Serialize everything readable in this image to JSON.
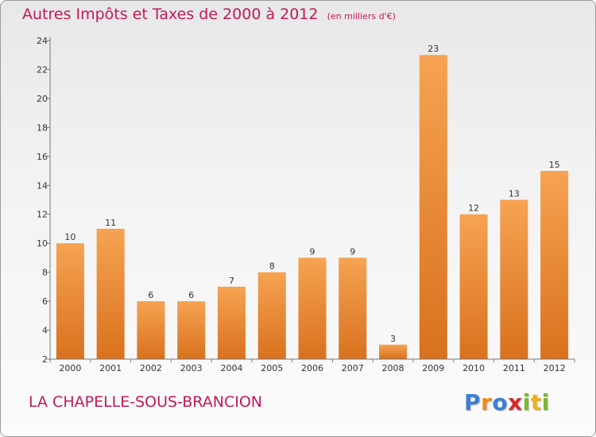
{
  "chart_data": {
    "type": "bar",
    "title": "Autres Impôts et Taxes de 2000 à 2012",
    "subtitle": "(en milliers d'€)",
    "categories": [
      "2000",
      "2001",
      "2002",
      "2003",
      "2004",
      "2005",
      "2006",
      "2007",
      "2008",
      "2009",
      "2010",
      "2011",
      "2012"
    ],
    "values": [
      10,
      11,
      6,
      6,
      7,
      8,
      9,
      9,
      3,
      23,
      12,
      13,
      15
    ],
    "ylim": [
      2,
      24
    ],
    "yticks": [
      "2",
      "4",
      "6",
      "8",
      "10",
      "12",
      "14",
      "16",
      "18",
      "20",
      "22",
      "24"
    ],
    "xlabel": "",
    "ylabel": "",
    "grid": false,
    "bar_color_top": "#f6a352",
    "bar_color_bottom": "#d9711e"
  },
  "footer": {
    "commune": "LA CHAPELLE-SOUS-BRANCION",
    "brand_letters": [
      "P",
      "r",
      "o",
      "x",
      "i",
      "t",
      "i"
    ],
    "brand_colors": [
      "#3b7fd1",
      "#f08a1c",
      "#3b7fd1",
      "#d92a2a",
      "#7cb82f",
      "#f0b01c",
      "#7cb82f"
    ]
  },
  "colors": {
    "title": "#c2185b"
  }
}
